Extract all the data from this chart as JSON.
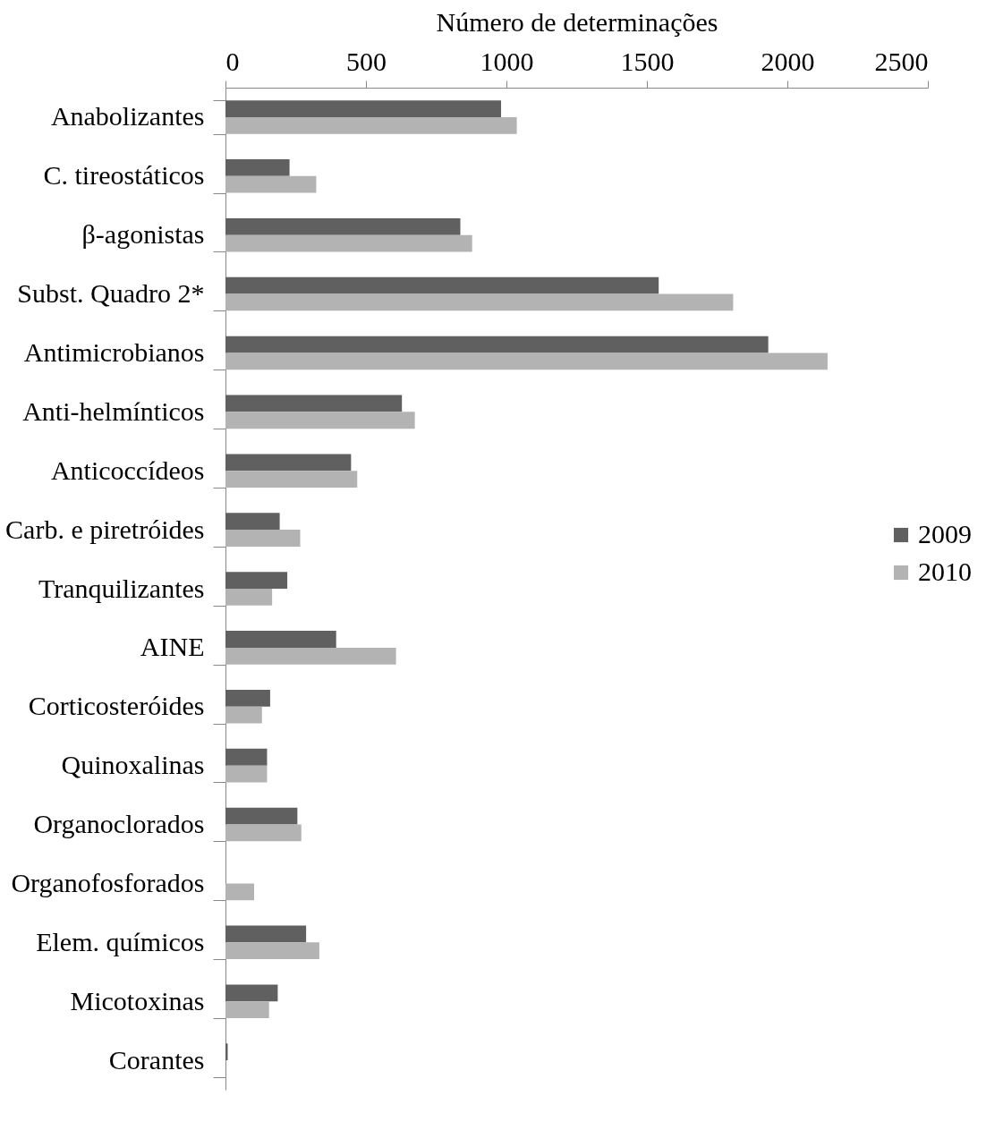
{
  "chart_data": {
    "type": "bar",
    "orientation": "horizontal",
    "xlabel": "Número de determinações",
    "categories": [
      "Anabolizantes",
      "C. tireostáticos",
      "β-agonistas",
      "Subst. Quadro 2*",
      "Antimicrobianos",
      "Anti-helmínticos",
      "Anticoccídeos",
      "Carb. e piretróides",
      "Tranquilizantes",
      "AINE",
      "Corticosteróides",
      "Quinoxalinas",
      "Organoclorados",
      "Organofosforados",
      "Elem. químicos",
      "Micotoxinas",
      "Corantes"
    ],
    "series": [
      {
        "name": "2009",
        "color": "#606060",
        "values": [
          981,
          228,
          836,
          1542,
          1932,
          628,
          447,
          193,
          220,
          394,
          159,
          148,
          256,
          null,
          287,
          186,
          8
        ]
      },
      {
        "name": "2010",
        "color": "#b3b3b3",
        "values": [
          1037,
          323,
          878,
          1807,
          2143,
          674,
          469,
          266,
          166,
          607,
          130,
          148,
          270,
          102,
          334,
          155,
          null
        ]
      }
    ],
    "xlim": [
      0,
      2500
    ],
    "xticks": [
      0,
      500,
      1000,
      1500,
      2000,
      2500
    ],
    "grid": false,
    "legend": "right"
  }
}
